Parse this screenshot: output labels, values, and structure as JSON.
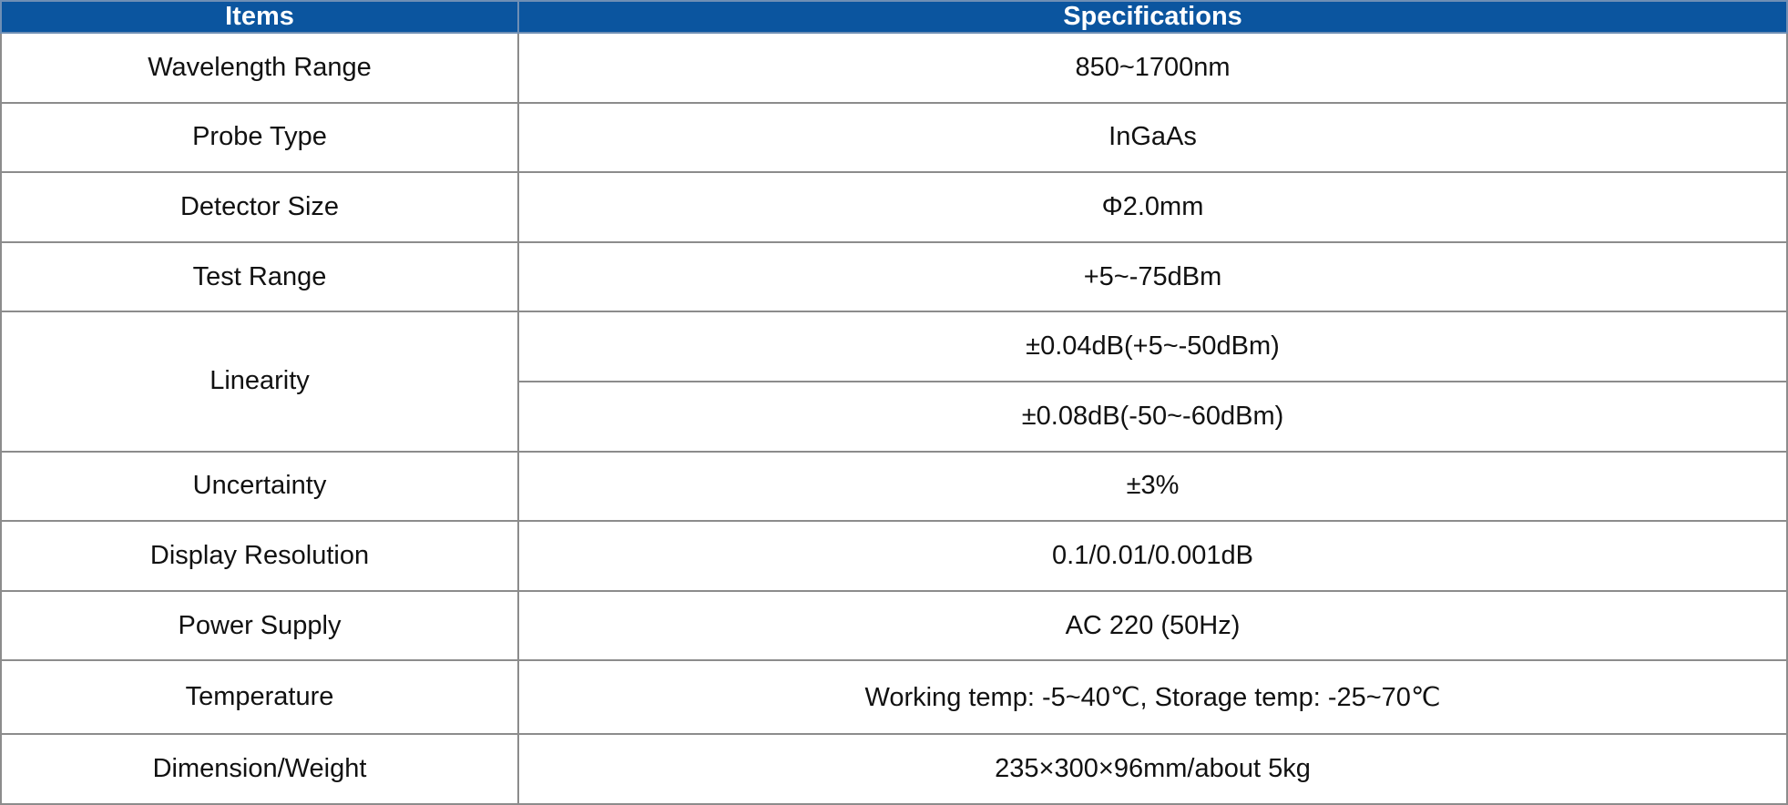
{
  "table": {
    "header": [
      "Items",
      "Specifications"
    ],
    "rows": [
      {
        "item": "Wavelength Range",
        "specs": [
          "850~1700nm"
        ]
      },
      {
        "item": "Probe Type",
        "specs": [
          "InGaAs"
        ]
      },
      {
        "item": "Detector Size",
        "specs": [
          "Φ2.0mm"
        ]
      },
      {
        "item": "Test Range",
        "specs": [
          "+5~-75dBm"
        ]
      },
      {
        "item": "Linearity",
        "specs": [
          "±0.04dB(+5~-50dBm)",
          "±0.08dB(-50~-60dBm)"
        ]
      },
      {
        "item": "Uncertainty",
        "specs": [
          "±3%"
        ]
      },
      {
        "item": "Display Resolution",
        "specs": [
          "0.1/0.01/0.001dB"
        ]
      },
      {
        "item": "Power Supply",
        "specs": [
          "AC 220 (50Hz)"
        ]
      },
      {
        "item": "Temperature",
        "specs": [
          "Working temp: -5~40℃, Storage temp: -25~70℃"
        ]
      },
      {
        "item": "Dimension/Weight",
        "specs": [
          "235×300×96mm/about 5kg"
        ]
      }
    ]
  }
}
